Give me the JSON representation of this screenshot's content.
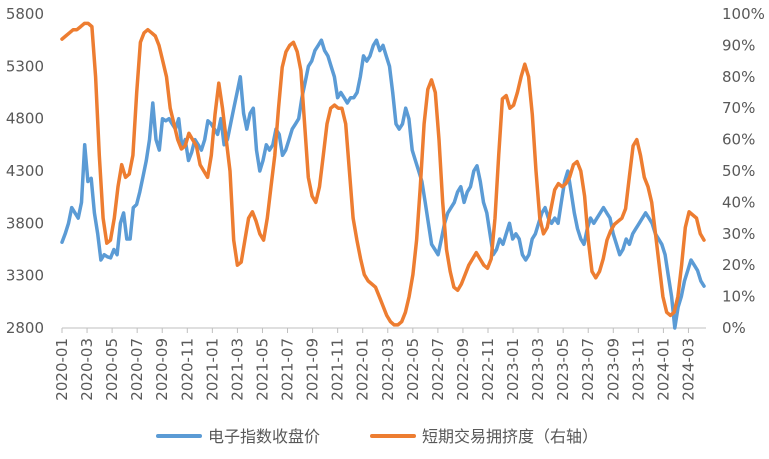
{
  "chart_data": {
    "type": "line",
    "x_labels": [
      "2020-01",
      "2020-03",
      "2020-05",
      "2020-07",
      "2020-09",
      "2020-11",
      "2021-01",
      "2021-03",
      "2021-05",
      "2021-07",
      "2021-09",
      "2021-11",
      "2022-01",
      "2022-03",
      "2022-05",
      "2022-07",
      "2022-09",
      "2022-11",
      "2023-01",
      "2023-03",
      "2023-05",
      "2023-07",
      "2023-09",
      "2023-11",
      "2024-01",
      "2024-03"
    ],
    "y_left": {
      "ticks": [
        "2800",
        "3300",
        "3800",
        "4300",
        "4800",
        "5300",
        "5800"
      ],
      "range": [
        2800,
        5800
      ]
    },
    "y_right": {
      "ticks": [
        "0%",
        "10%",
        "20%",
        "30%",
        "40%",
        "50%",
        "60%",
        "70%",
        "80%",
        "90%",
        "100%"
      ],
      "range": [
        0,
        1
      ]
    },
    "grid": false,
    "legend_position": "bottom",
    "series": [
      {
        "name": "电子指数收盘价",
        "axis": "left",
        "color": "#5B9BD5",
        "values": [
          3620,
          3700,
          3800,
          3950,
          3900,
          3850,
          4000,
          4550,
          4200,
          4230,
          3900,
          3700,
          3450,
          3500,
          3480,
          3470,
          3550,
          3500,
          3800,
          3900,
          3650,
          3650,
          3950,
          3980,
          4100,
          4250,
          4400,
          4600,
          4950,
          4600,
          4500,
          4800,
          4780,
          4800,
          4750,
          4700,
          4800,
          4520,
          4600,
          4400,
          4480,
          4600,
          4550,
          4500,
          4600,
          4780,
          4750,
          4700,
          4650,
          4800,
          4550,
          4600,
          4750,
          4900,
          5050,
          5200,
          4850,
          4700,
          4850,
          4900,
          4500,
          4300,
          4400,
          4550,
          4500,
          4550,
          4700,
          4650,
          4450,
          4500,
          4600,
          4700,
          4750,
          4800,
          5000,
          5150,
          5300,
          5350,
          5450,
          5500,
          5550,
          5450,
          5400,
          5300,
          5200,
          5000,
          5050,
          5000,
          4950,
          5000,
          5000,
          5050,
          5200,
          5400,
          5350,
          5400,
          5500,
          5550,
          5450,
          5500,
          5400,
          5300,
          5050,
          4750,
          4700,
          4750,
          4900,
          4800,
          4500,
          4400,
          4300,
          4200,
          4000,
          3800,
          3600,
          3550,
          3500,
          3650,
          3800,
          3900,
          3950,
          4000,
          4100,
          4150,
          4000,
          4100,
          4150,
          4300,
          4350,
          4200,
          4000,
          3900,
          3700,
          3500,
          3550,
          3650,
          3600,
          3700,
          3800,
          3650,
          3700,
          3650,
          3500,
          3450,
          3500,
          3650,
          3700,
          3800,
          3900,
          3950,
          3850,
          3800,
          3850,
          3800,
          4000,
          4200,
          4300,
          4100,
          3900,
          3750,
          3650,
          3600,
          3750,
          3850,
          3800,
          3850,
          3900,
          3950,
          3900,
          3850,
          3700,
          3600,
          3500,
          3550,
          3650,
          3600,
          3700,
          3750,
          3800,
          3850,
          3900,
          3850,
          3800,
          3700,
          3650,
          3600,
          3500,
          3300,
          3100,
          2800,
          3000,
          3100,
          3250,
          3350,
          3450,
          3400,
          3350,
          3250,
          3200
        ]
      },
      {
        "name": "短期交易拥挤度（右轴）",
        "axis": "right",
        "color": "#ED7D31",
        "values": [
          0.92,
          0.93,
          0.94,
          0.95,
          0.95,
          0.96,
          0.97,
          0.97,
          0.96,
          0.8,
          0.55,
          0.35,
          0.27,
          0.28,
          0.35,
          0.45,
          0.52,
          0.48,
          0.49,
          0.55,
          0.75,
          0.91,
          0.94,
          0.95,
          0.94,
          0.93,
          0.9,
          0.85,
          0.8,
          0.7,
          0.65,
          0.6,
          0.57,
          0.58,
          0.62,
          0.6,
          0.58,
          0.52,
          0.5,
          0.48,
          0.55,
          0.68,
          0.78,
          0.7,
          0.6,
          0.5,
          0.28,
          0.2,
          0.21,
          0.28,
          0.35,
          0.37,
          0.34,
          0.3,
          0.28,
          0.35,
          0.45,
          0.55,
          0.7,
          0.83,
          0.88,
          0.9,
          0.91,
          0.88,
          0.82,
          0.65,
          0.48,
          0.42,
          0.4,
          0.45,
          0.55,
          0.65,
          0.7,
          0.71,
          0.7,
          0.7,
          0.65,
          0.5,
          0.35,
          0.28,
          0.22,
          0.17,
          0.15,
          0.14,
          0.13,
          0.1,
          0.07,
          0.04,
          0.02,
          0.01,
          0.01,
          0.02,
          0.05,
          0.1,
          0.17,
          0.28,
          0.45,
          0.65,
          0.76,
          0.79,
          0.75,
          0.6,
          0.4,
          0.25,
          0.18,
          0.13,
          0.12,
          0.14,
          0.17,
          0.2,
          0.22,
          0.24,
          0.22,
          0.2,
          0.19,
          0.22,
          0.35,
          0.55,
          0.73,
          0.74,
          0.7,
          0.71,
          0.75,
          0.8,
          0.84,
          0.8,
          0.68,
          0.5,
          0.35,
          0.3,
          0.32,
          0.38,
          0.44,
          0.46,
          0.45,
          0.46,
          0.48,
          0.52,
          0.53,
          0.5,
          0.42,
          0.28,
          0.18,
          0.16,
          0.18,
          0.22,
          0.28,
          0.31,
          0.33,
          0.34,
          0.35,
          0.38,
          0.48,
          0.58,
          0.6,
          0.55,
          0.48,
          0.45,
          0.4,
          0.3,
          0.2,
          0.1,
          0.05,
          0.04,
          0.05,
          0.1,
          0.2,
          0.32,
          0.37,
          0.36,
          0.35,
          0.3,
          0.28
        ]
      }
    ]
  }
}
